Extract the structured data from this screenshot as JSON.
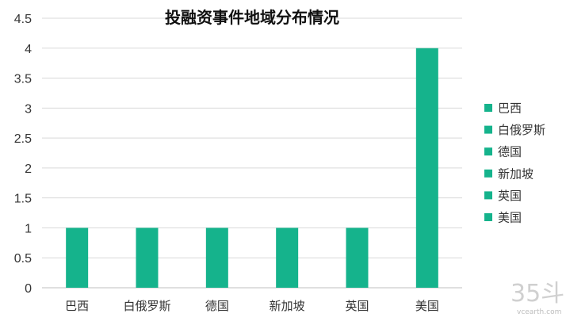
{
  "chart_data": {
    "type": "bar",
    "title": "投融资事件地域分布情况",
    "categories": [
      "巴西",
      "白俄罗斯",
      "德国",
      "新加坡",
      "英国",
      "美国"
    ],
    "values": [
      1,
      1,
      1,
      1,
      1,
      4
    ],
    "ylim": [
      0,
      4.5
    ],
    "yticks": [
      "0",
      "0.5",
      "1",
      "1.5",
      "2",
      "2.5",
      "3",
      "3.5",
      "4",
      "4.5"
    ],
    "xlabel": "",
    "ylabel": "",
    "grid": true,
    "legend_position": "right",
    "bar_color": "#15b38c",
    "legend": [
      "巴西",
      "白俄罗斯",
      "德国",
      "新加坡",
      "英国",
      "美国"
    ]
  },
  "watermark": {
    "logo_text": "35斗",
    "site": "vcearth.com"
  }
}
